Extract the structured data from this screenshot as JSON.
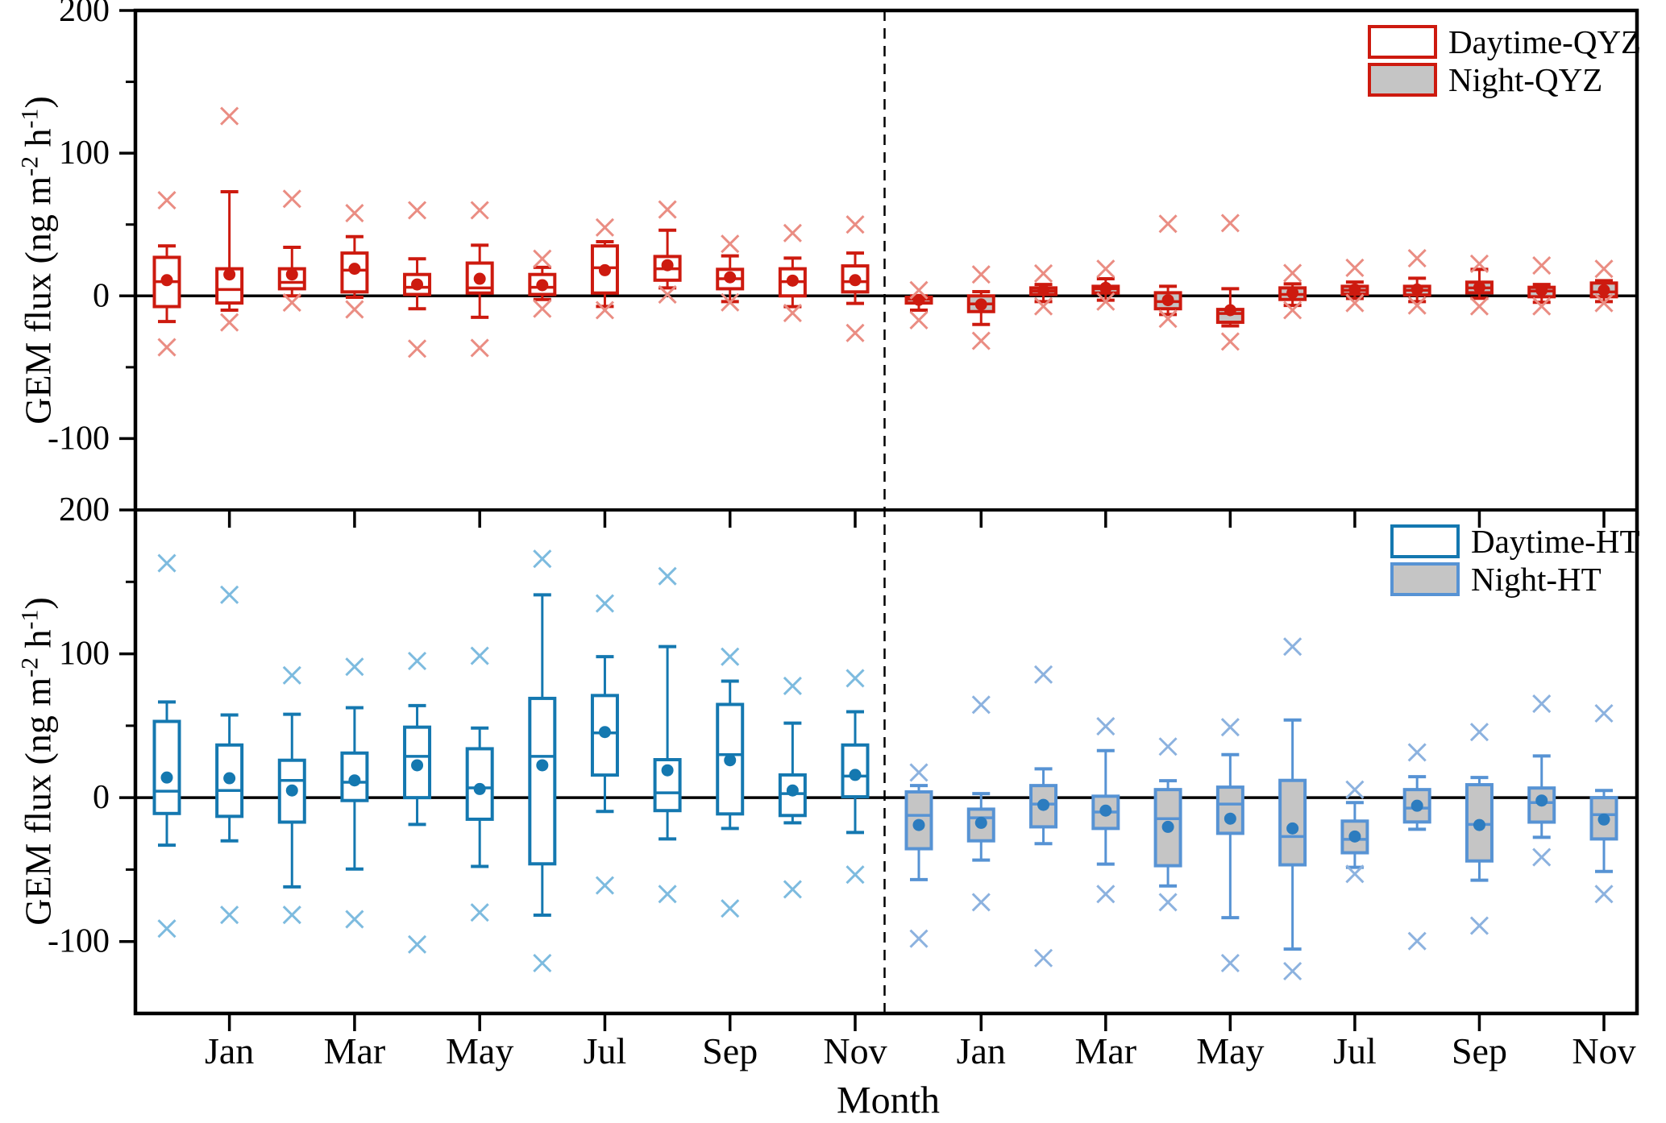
{
  "chart_data": {
    "type": "box",
    "xlabel": "Month",
    "ylabel": "GEM flux (ng m-2 h-1)",
    "ylabel_prefix": "GEM flux (ng m",
    "ylabel_sup1": "-2",
    "ylabel_mid": " h",
    "ylabel_sup2": "-1",
    "ylabel_suffix": ")",
    "ylim": [
      -150,
      200
    ],
    "yticks": [
      200,
      100,
      0,
      -100
    ],
    "yticks_minor": [
      150,
      50,
      -50
    ],
    "xtick_labels": [
      "Jan",
      "Mar",
      "May",
      "Jul",
      "Sep",
      "Nov"
    ],
    "months": [
      "Dec",
      "Jan",
      "Feb",
      "Mar",
      "Apr",
      "May",
      "Jun",
      "Jul",
      "Aug",
      "Sep",
      "Oct",
      "Nov"
    ],
    "grid": false,
    "legend_position": "top-right-inside",
    "colors": {
      "frame": "#000000",
      "qyz_stroke": "#CD1A0F",
      "qyz_outlier": "#EA8D83",
      "night_fill": "#C5C5C5",
      "day_fill": "#FFFFFF",
      "ht_stroke": "#1478B0",
      "ht_outlier": "#7DBBDF",
      "ht_night_stroke": "#5793D4",
      "ht_night_mean": "#2C7CBF",
      "ht_night_outlier": "#8CB2DF"
    },
    "panels": [
      {
        "site": "QYZ",
        "series": [
          {
            "name": "Daytime-QYZ",
            "stroke": "#CD1A0F",
            "fill": "#FFFFFF",
            "mean_color": "#CD1A0F",
            "outlier_color": "#EA8D83",
            "boxes": [
              {
                "m": "Dec",
                "lo": -18,
                "q1": -7.5,
                "med": 10,
                "mean": 11,
                "q3": 27,
                "hi": 35,
                "out": [
                  67,
                  -36
                ]
              },
              {
                "m": "Jan",
                "lo": -10,
                "q1": -5,
                "med": 4.5,
                "mean": 15,
                "q3": 19,
                "hi": 73,
                "out": [
                  126,
                  -18.6
                ]
              },
              {
                "m": "Feb",
                "lo": 0,
                "q1": 5,
                "med": 9.5,
                "mean": 15,
                "q3": 19,
                "hi": 34,
                "out": [
                  68,
                  -4.7
                ]
              },
              {
                "m": "Mar",
                "lo": -1,
                "q1": 2.8,
                "med": 18,
                "mean": 19,
                "q3": 30,
                "hi": 41.5,
                "out": [
                  58,
                  -9.5
                ]
              },
              {
                "m": "Apr",
                "lo": -9,
                "q1": 1,
                "med": 6,
                "mean": 8,
                "q3": 15,
                "hi": 26,
                "out": [
                  60,
                  -37
                ]
              },
              {
                "m": "May",
                "lo": -15,
                "q1": 2,
                "med": 5.6,
                "mean": 12,
                "q3": 23,
                "hi": 35.5,
                "out": [
                  60,
                  -36.5
                ]
              },
              {
                "m": "Jun",
                "lo": -2.5,
                "q1": 1,
                "med": 6,
                "mean": 7.5,
                "q3": 15,
                "hi": 20,
                "out": [
                  26,
                  -9
                ]
              },
              {
                "m": "Jul",
                "lo": -7.4,
                "q1": 2,
                "med": 19.7,
                "mean": 18,
                "q3": 35,
                "hi": 38,
                "out": [
                  48,
                  -10
                ]
              },
              {
                "m": "Aug",
                "lo": 5.6,
                "q1": 11,
                "med": 19,
                "mean": 21.5,
                "q3": 27.6,
                "hi": 46,
                "out": [
                  60.5,
                  1
                ]
              },
              {
                "m": "Sep",
                "lo": -4,
                "q1": 5,
                "med": 12,
                "mean": 13,
                "q3": 18.6,
                "hi": 28,
                "out": [
                  36.5,
                  -4.5
                ]
              },
              {
                "m": "Oct",
                "lo": -7.5,
                "q1": 0,
                "med": 10,
                "mean": 10.7,
                "q3": 19,
                "hi": 26.5,
                "out": [
                  44,
                  -12
                ]
              },
              {
                "m": "Nov",
                "lo": -5.3,
                "q1": 2.8,
                "med": 10,
                "mean": 11,
                "q3": 21,
                "hi": 30,
                "out": [
                  50,
                  -26
                ]
              }
            ]
          },
          {
            "name": "Night-QYZ",
            "stroke": "#CD1A0F",
            "fill": "#C5C5C5",
            "mean_color": "#CD1A0F",
            "outlier_color": "#EA8D83",
            "boxes": [
              {
                "m": "Dec",
                "lo": -10,
                "q1": -5,
                "med": -2.3,
                "mean": -2.8,
                "q3": -1,
                "hi": 0,
                "out": [
                  4,
                  -17
                ]
              },
              {
                "m": "Jan",
                "lo": -20,
                "q1": -11,
                "med": -5.6,
                "mean": -6,
                "q3": 0,
                "hi": 3,
                "out": [
                  15,
                  -31.5
                ]
              },
              {
                "m": "Feb",
                "lo": -4,
                "q1": 1,
                "med": 3.4,
                "mean": 4,
                "q3": 5.6,
                "hi": 8,
                "out": [
                  15.7,
                  -7.3
                ]
              },
              {
                "m": "Mar",
                "lo": -3,
                "q1": 2,
                "med": 5,
                "mean": 5.6,
                "q3": 6.7,
                "hi": 12,
                "out": [
                  19,
                  -4
                ]
              },
              {
                "m": "Apr",
                "lo": -13,
                "q1": -9,
                "med": -4,
                "mean": -3,
                "q3": 2.2,
                "hi": 6.7,
                "out": [
                  50.5,
                  -16
                ]
              },
              {
                "m": "May",
                "lo": -21,
                "q1": -18.5,
                "med": -12.3,
                "mean": -10,
                "q3": -9.5,
                "hi": 5,
                "out": [
                  51,
                  -32
                ]
              },
              {
                "m": "Jun",
                "lo": -6.7,
                "q1": -2.5,
                "med": 1,
                "mean": 2.2,
                "q3": 5.6,
                "hi": 8.4,
                "out": [
                  16,
                  -10
                ]
              },
              {
                "m": "Jul",
                "lo": -1.8,
                "q1": 1.2,
                "med": 3.9,
                "mean": 4.5,
                "q3": 6.7,
                "hi": 9.7,
                "out": [
                  19.7,
                  -5
                ]
              },
              {
                "m": "Aug",
                "lo": -4,
                "q1": 0.6,
                "med": 3.9,
                "mean": 4.5,
                "q3": 6.7,
                "hi": 12.4,
                "out": [
                  26.4,
                  -6.7
                ]
              },
              {
                "m": "Sep",
                "lo": -1.7,
                "q1": 2.2,
                "med": 5.6,
                "mean": 6,
                "q3": 9.6,
                "hi": 18.6,
                "out": [
                  22.5,
                  -7.3
                ]
              },
              {
                "m": "Oct",
                "lo": -4.5,
                "q1": -0.6,
                "med": 3.4,
                "mean": 4,
                "q3": 6,
                "hi": 8,
                "out": [
                  21.3,
                  -7.3
                ]
              },
              {
                "m": "Nov",
                "lo": -4,
                "q1": -0.6,
                "med": 2.8,
                "mean": 4,
                "q3": 9,
                "hi": 10.7,
                "out": [
                  19,
                  -5
                ]
              }
            ]
          }
        ]
      },
      {
        "site": "HT",
        "series": [
          {
            "name": "Daytime-HT",
            "stroke": "#1478B0",
            "fill": "#FFFFFF",
            "mean_color": "#1478B0",
            "outlier_color": "#7DBBDF",
            "boxes": [
              {
                "m": "Dec",
                "lo": -33,
                "q1": -11,
                "med": 4.5,
                "mean": 14,
                "q3": 53,
                "hi": 66.5,
                "out": [
                  163,
                  -91
                ]
              },
              {
                "m": "Jan",
                "lo": -30,
                "q1": -13,
                "med": 5,
                "mean": 13.5,
                "q3": 36.6,
                "hi": 57.5,
                "out": [
                  141,
                  -81.5
                ]
              },
              {
                "m": "Feb",
                "lo": -62,
                "q1": -17,
                "med": 12,
                "mean": 5,
                "q3": 26,
                "hi": 58,
                "out": [
                  85,
                  -81.5
                ]
              },
              {
                "m": "Mar",
                "lo": -49.6,
                "q1": -2,
                "med": 10.7,
                "mean": 12,
                "q3": 31,
                "hi": 62.5,
                "out": [
                  91,
                  -84.5
                ]
              },
              {
                "m": "Apr",
                "lo": -18.6,
                "q1": 0,
                "med": 28.7,
                "mean": 22.5,
                "q3": 49,
                "hi": 64,
                "out": [
                  95,
                  -102
                ]
              },
              {
                "m": "May",
                "lo": -47.8,
                "q1": -15,
                "med": 6.8,
                "mean": 6,
                "q3": 34,
                "hi": 48.4,
                "out": [
                  98.6,
                  -79.8
                ]
              },
              {
                "m": "Jun",
                "lo": -81.7,
                "q1": -46,
                "med": 28.7,
                "mean": 22.5,
                "q3": 69,
                "hi": 141,
                "out": [
                  166,
                  -115
                ]
              },
              {
                "m": "Jul",
                "lo": -9.6,
                "q1": 15.7,
                "med": 45,
                "mean": 45.6,
                "q3": 71,
                "hi": 98,
                "out": [
                  135,
                  -61
                ]
              },
              {
                "m": "Aug",
                "lo": -28.7,
                "q1": -9,
                "med": 3.4,
                "mean": 19,
                "q3": 26.4,
                "hi": 105,
                "out": [
                  154,
                  -67
                ]
              },
              {
                "m": "Sep",
                "lo": -21.4,
                "q1": -11.3,
                "med": 29.9,
                "mean": 26,
                "q3": 64.8,
                "hi": 81,
                "out": [
                  98,
                  -77
                ]
              },
              {
                "m": "Oct",
                "lo": -17.5,
                "q1": -12.4,
                "med": 2.8,
                "mean": 5,
                "q3": 15.8,
                "hi": 51.8,
                "out": [
                  77.7,
                  -63.7
                ]
              },
              {
                "m": "Nov",
                "lo": -24.2,
                "q1": 0.6,
                "med": 15,
                "mean": 15.8,
                "q3": 36.6,
                "hi": 59.7,
                "out": [
                  83,
                  -53.5
                ]
              }
            ]
          },
          {
            "name": "Night-HT",
            "stroke": "#5793D4",
            "fill": "#C5C5C5",
            "mean_color": "#2C7CBF",
            "outlier_color": "#8CB2DF",
            "boxes": [
              {
                "m": "Dec",
                "lo": -57,
                "q1": -35.5,
                "med": -12.3,
                "mean": -19,
                "q3": 4,
                "hi": 8.4,
                "out": [
                  17.5,
                  -98
                ]
              },
              {
                "m": "Jan",
                "lo": -43.4,
                "q1": -30,
                "med": -14,
                "mean": -17.5,
                "q3": -8,
                "hi": 2.8,
                "out": [
                  64.6,
                  -72.7
                ]
              },
              {
                "m": "Feb",
                "lo": -32,
                "q1": -20.3,
                "med": -4.5,
                "mean": -5,
                "q3": 8.4,
                "hi": 20,
                "out": [
                  85.6,
                  -111.5
                ]
              },
              {
                "m": "Mar",
                "lo": -46.2,
                "q1": -21.4,
                "med": -10,
                "mean": -9,
                "q3": 1,
                "hi": 32.7,
                "out": [
                  49.6,
                  -67
                ]
              },
              {
                "m": "Apr",
                "lo": -61.4,
                "q1": -47.3,
                "med": -14.6,
                "mean": -20.3,
                "q3": 5.6,
                "hi": 11.8,
                "out": [
                  35.5,
                  -72.7
                ]
              },
              {
                "m": "May",
                "lo": -83.4,
                "q1": -24.8,
                "med": -4.5,
                "mean": -14.6,
                "q3": 7.3,
                "hi": 29.9,
                "out": [
                  49,
                  -115
                ]
              },
              {
                "m": "Jun",
                "lo": -105.3,
                "q1": -46.7,
                "med": -27,
                "mean": -21.4,
                "q3": 12,
                "hi": 54,
                "out": [
                  105,
                  -120.6
                ]
              },
              {
                "m": "Jul",
                "lo": -48.4,
                "q1": -38.3,
                "med": -29,
                "mean": -27,
                "q3": -16.3,
                "hi": -3.4,
                "out": [
                  5.6,
                  -53
                ]
              },
              {
                "m": "Aug",
                "lo": -22,
                "q1": -16.9,
                "med": -7.3,
                "mean": -5.6,
                "q3": 5.6,
                "hi": 14.6,
                "out": [
                  31.5,
                  -99.7
                ]
              },
              {
                "m": "Sep",
                "lo": -57.4,
                "q1": -44,
                "med": -18.6,
                "mean": -19,
                "q3": 9,
                "hi": 14,
                "out": [
                  45.6,
                  -89
                ]
              },
              {
                "m": "Oct",
                "lo": -27.6,
                "q1": -17,
                "med": -3.4,
                "mean": -2,
                "q3": 6.7,
                "hi": 29,
                "out": [
                  65.3,
                  -41.4
                ]
              },
              {
                "m": "Nov",
                "lo": -51.3,
                "q1": -28.7,
                "med": -11.8,
                "mean": -15.2,
                "q3": 0,
                "hi": 5,
                "out": [
                  58.6,
                  -67
                ]
              }
            ]
          }
        ]
      }
    ]
  }
}
